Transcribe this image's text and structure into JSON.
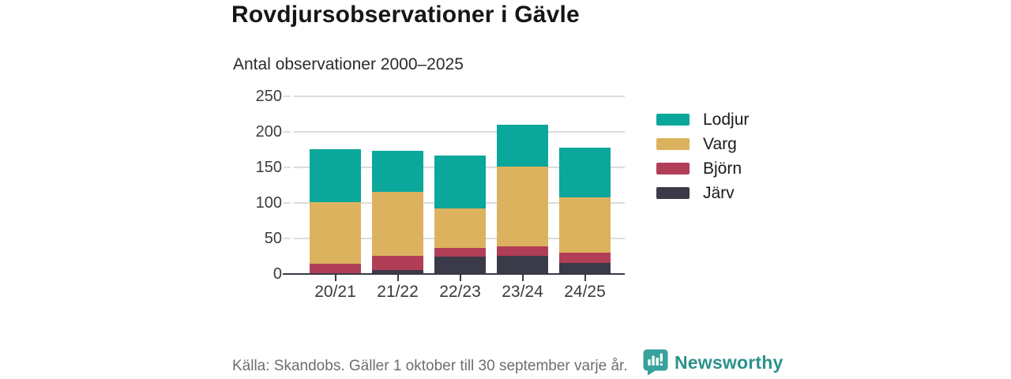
{
  "title": "Rovdjursobservationer i Gävle",
  "subtitle": "Antal observationer 2000–2025",
  "footer": {
    "source": "Källa: Skandobs. Gäller 1 oktober till 30 september varje år.",
    "brand": "Newsworthy"
  },
  "colors": {
    "lodjur": "#0ba79b",
    "varg": "#ddb25f",
    "bjorn": "#b13e57",
    "jarv": "#3b3a48",
    "grid": "#dcdcdc",
    "axis": "#3a3947",
    "brand_logo": "#36a29b",
    "brand_text": "#2b928c"
  },
  "chart_data": {
    "type": "bar",
    "stacked": true,
    "title": "Rovdjursobservationer i Gävle",
    "subtitle": "Antal observationer 2000–2025",
    "categories": [
      "20/21",
      "21/22",
      "22/23",
      "23/24",
      "24/25"
    ],
    "series": [
      {
        "name": "Järv",
        "color": "#3b3a48",
        "values": [
          1,
          6,
          25,
          26,
          16
        ]
      },
      {
        "name": "Björn",
        "color": "#b13e57",
        "values": [
          13,
          20,
          12,
          13,
          14
        ]
      },
      {
        "name": "Varg",
        "color": "#ddb25f",
        "values": [
          87,
          90,
          55,
          112,
          78
        ]
      },
      {
        "name": "Lodjur",
        "color": "#0ba79b",
        "values": [
          75,
          57,
          75,
          59,
          70
        ]
      }
    ],
    "totals": [
      176,
      173,
      167,
      210,
      178
    ],
    "legend": [
      "Lodjur",
      "Varg",
      "Björn",
      "Järv"
    ],
    "legend_position": "right",
    "xlabel": "",
    "ylabel": "",
    "ylim": [
      0,
      250
    ],
    "yticks": [
      0,
      50,
      100,
      150,
      200,
      250
    ],
    "grid": true
  }
}
